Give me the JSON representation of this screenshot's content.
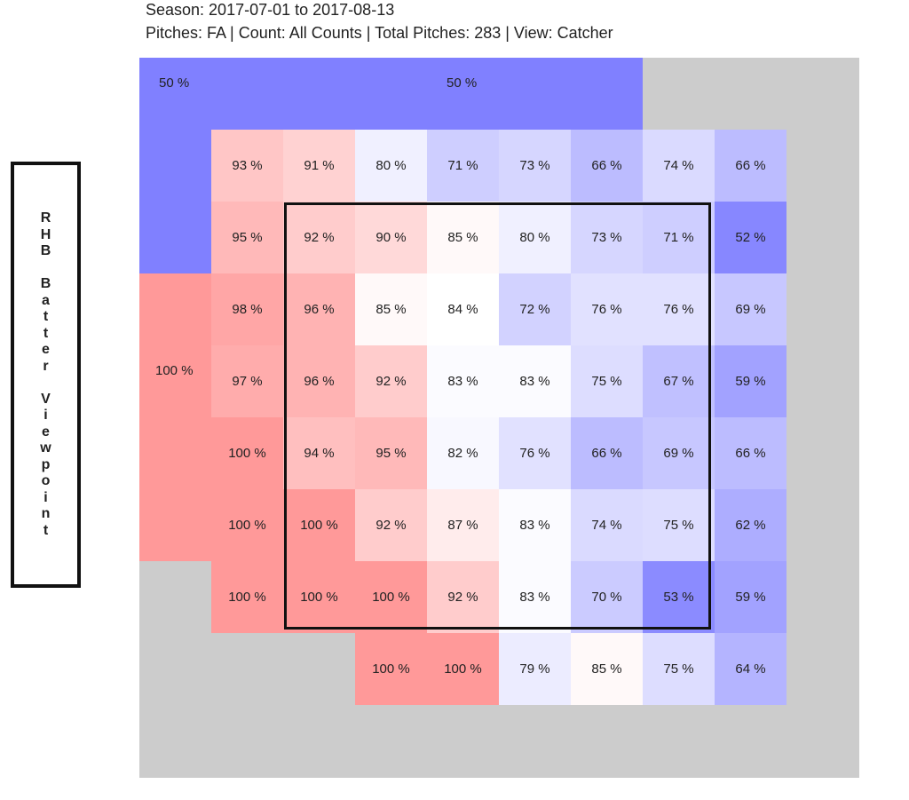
{
  "header": {
    "season_line": "Season: 2017-07-01 to 2017-08-13",
    "pitch_line": "Pitches: FA | Count: All Counts | Total Pitches: 283 | View: Catcher"
  },
  "side_label": "RHB Batter Viewpoint",
  "colors": {
    "background": "#cccccc",
    "high": "#ff9999",
    "mid": "#ffffff",
    "low": "#8080ff",
    "zone_border": "#111111"
  },
  "chart_data": {
    "type": "heatmap",
    "value_unit": "%",
    "outer_regions": [
      {
        "region": "top-left",
        "value": 50,
        "label": "50 %"
      },
      {
        "region": "top",
        "value": 50,
        "label": "50 %"
      },
      {
        "region": "left",
        "value": 100,
        "label": "100 %"
      }
    ],
    "grid": {
      "columns": 8,
      "rows": 8,
      "values": [
        [
          93,
          91,
          80,
          71,
          73,
          66,
          74,
          66
        ],
        [
          95,
          92,
          90,
          85,
          80,
          73,
          71,
          52
        ],
        [
          98,
          96,
          85,
          84,
          72,
          76,
          76,
          69
        ],
        [
          97,
          96,
          92,
          83,
          83,
          75,
          67,
          59
        ],
        [
          100,
          94,
          95,
          82,
          76,
          66,
          69,
          66
        ],
        [
          100,
          100,
          92,
          87,
          83,
          74,
          75,
          62
        ],
        [
          100,
          100,
          100,
          92,
          83,
          70,
          53,
          59
        ],
        [
          null,
          null,
          100,
          100,
          79,
          85,
          75,
          64
        ]
      ]
    }
  }
}
